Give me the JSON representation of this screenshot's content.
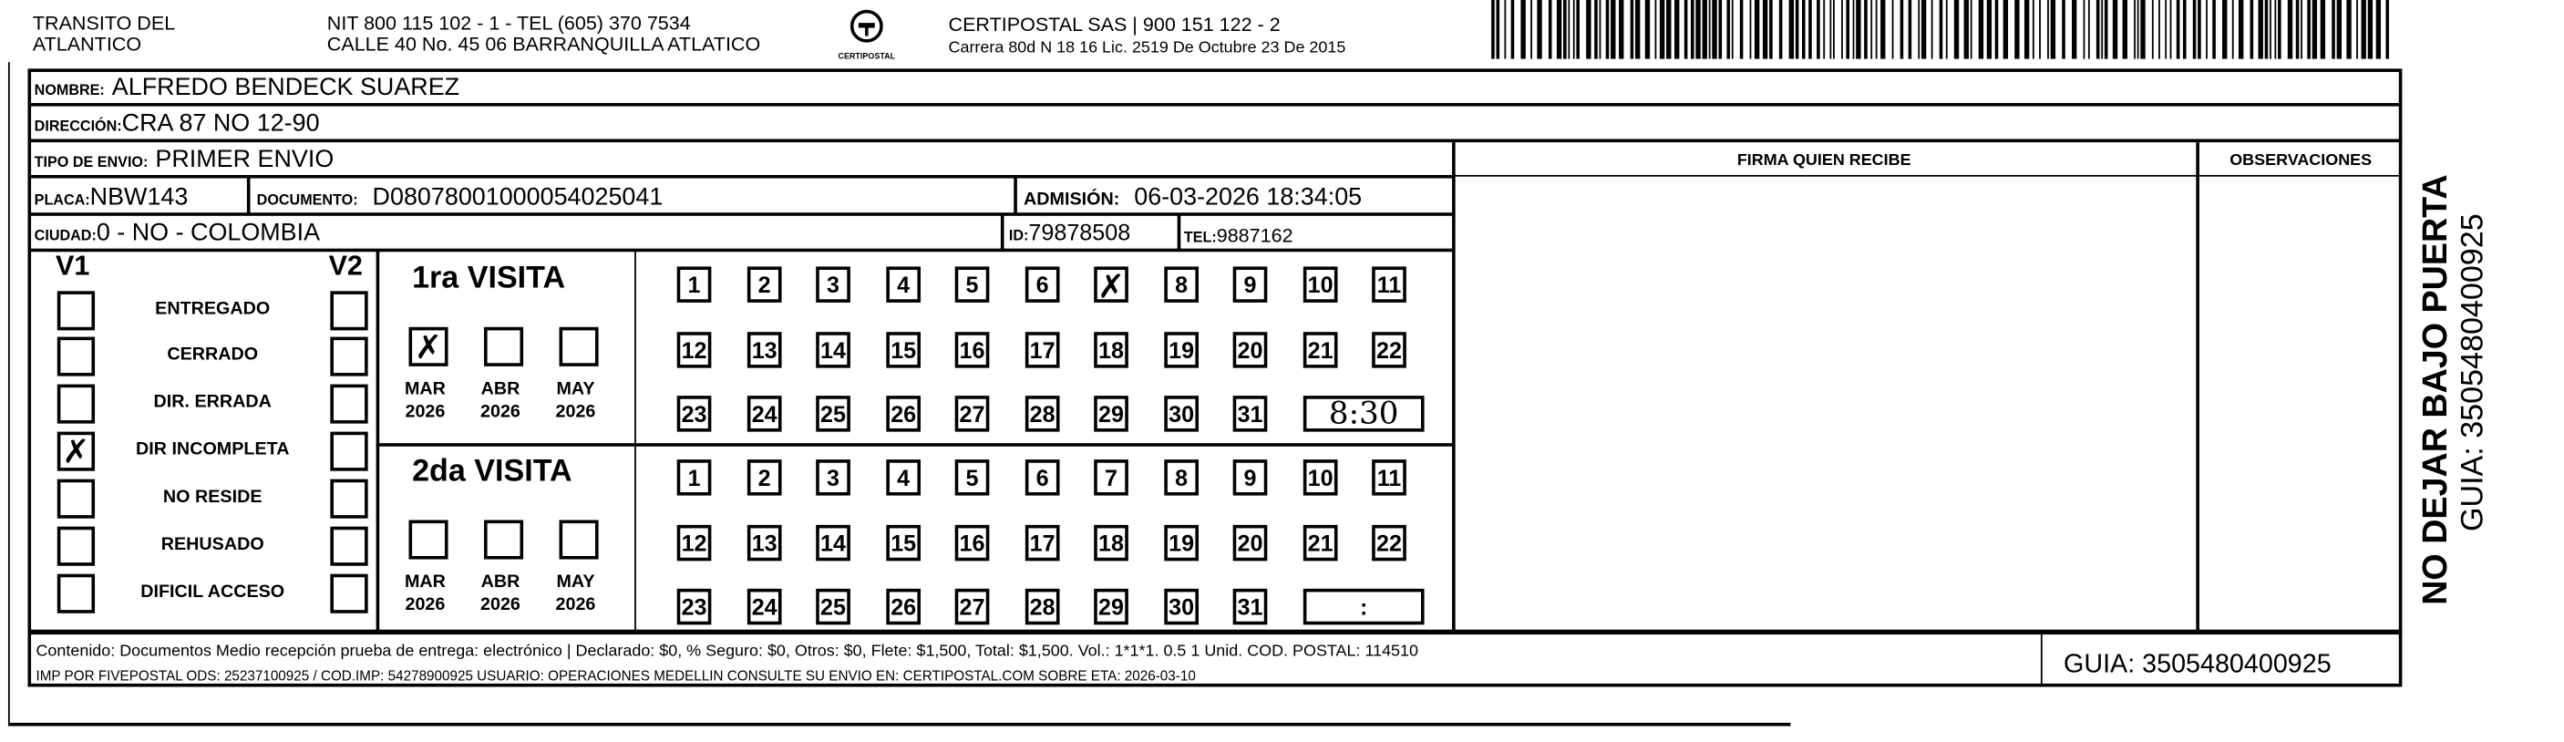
{
  "header": {
    "issuer_line1": "TRANSITO DEL",
    "issuer_line2": "ATLANTICO",
    "issuer_nit": "NIT 800 115 102 - 1 - TEL (605) 370 7534",
    "issuer_address": "CALLE 40 No. 45 06 BARRANQUILLA ATLATICO",
    "logo_text": "CERTIPOSTAL",
    "courier_name": "CERTIPOSTAL SAS | 900 151 122 - 2",
    "courier_license": "Carrera 80d N 18 16  Lic. 2519 De Octubre 23 De 2015"
  },
  "fields": {
    "nombre_label": "NOMBRE:",
    "nombre": "ALFREDO BENDECK SUAREZ",
    "direccion_label": "DIRECCIÓN:",
    "direccion": "CRA 87 NO 12-90",
    "tipo_label": "TIPO DE ENVIO:",
    "tipo": "PRIMER ENVIO",
    "placa_label": "PLACA:",
    "placa": "NBW143",
    "documento_label": "DOCUMENTO:",
    "documento": "D08078001000054025041",
    "admision_label": "ADMISIÓN:",
    "admision": "06-03-2026 18:34:05",
    "ciudad_label": "CIUDAD:",
    "ciudad": "0 - NO - COLOMBIA",
    "id_label": "ID:",
    "id": "79878508",
    "tel_label": "TEL:",
    "tel": "9887162"
  },
  "columns": {
    "firma": "FIRMA QUIEN RECIBE",
    "observaciones": "OBSERVACIONES"
  },
  "status": {
    "v1": "V1",
    "v2": "V2",
    "items": [
      {
        "label": "ENTREGADO",
        "v1": false,
        "v2": false
      },
      {
        "label": "CERRADO",
        "v1": false,
        "v2": false
      },
      {
        "label": "DIR. ERRADA",
        "v1": false,
        "v2": false
      },
      {
        "label": "DIR INCOMPLETA",
        "v1": true,
        "v2": false
      },
      {
        "label": "NO RESIDE",
        "v1": false,
        "v2": false
      },
      {
        "label": "REHUSADO",
        "v1": false,
        "v2": false
      },
      {
        "label": "DIFICIL ACCESO",
        "v1": false,
        "v2": false
      }
    ]
  },
  "visits": [
    {
      "title": "1ra VISITA",
      "months": [
        {
          "m": "MAR",
          "y": "2026",
          "checked": true
        },
        {
          "m": "ABR",
          "y": "2026",
          "checked": false
        },
        {
          "m": "MAY",
          "y": "2026",
          "checked": false
        }
      ],
      "day_checked": 7,
      "time": "8:30"
    },
    {
      "title": "2da VISITA",
      "months": [
        {
          "m": "MAR",
          "y": "2026",
          "checked": false
        },
        {
          "m": "ABR",
          "y": "2026",
          "checked": false
        },
        {
          "m": "MAY",
          "y": "2026",
          "checked": false
        }
      ],
      "day_checked": null,
      "time": ":"
    }
  ],
  "footer": {
    "contenido": "Contenido: Documentos Medio recepción prueba de entrega: electrónico | Declarado: $0, % Seguro: $0, Otros: $0, Flete: $1,500, Total: $1,500. Vol.: 1*1*1. 0.5  1 Unid. COD. POSTAL: 114510",
    "imp": "IMP POR FIVEPOSTAL ODS: 25237100925 / COD.IMP: 54278900925 USUARIO: OPERACIONES MEDELLIN CONSULTE SU ENVIO EN: CERTIPOSTAL.COM SOBRE ETA: 2026-03-10",
    "guia": "GUIA: 3505480400925"
  },
  "side": {
    "warning": "NO DEJAR BAJO PUERTA",
    "guia": "GUIA: 3505480400925"
  }
}
